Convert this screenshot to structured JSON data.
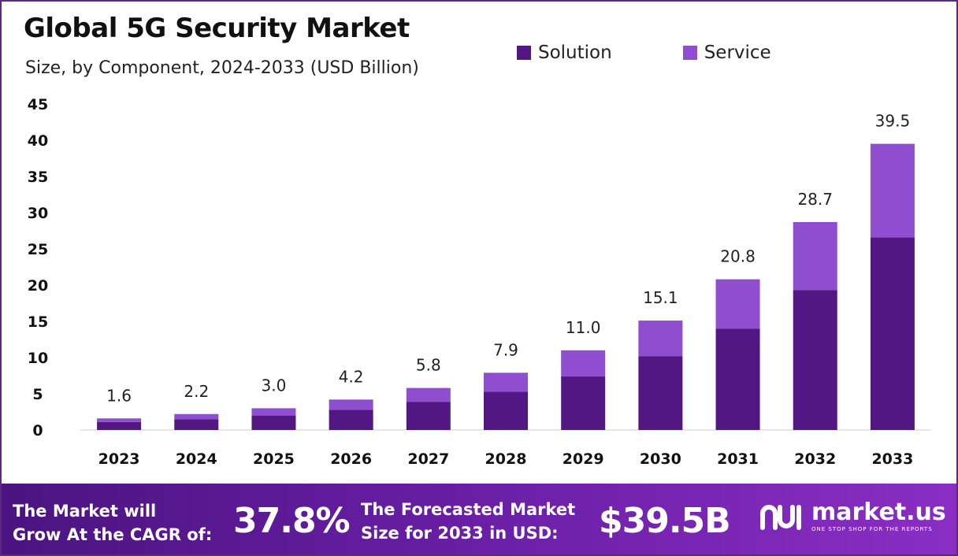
{
  "title": "Global 5G Security Market",
  "subtitle": "Size, by Component, 2024-2033 (USD Billion)",
  "colors": {
    "solution": "#521783",
    "service": "#8e4ecf",
    "axis": "#cccccc"
  },
  "legend": [
    {
      "label": "Solution",
      "color": "#521783"
    },
    {
      "label": "Service",
      "color": "#8e4ecf"
    }
  ],
  "chart_data": {
    "type": "bar",
    "stacked": true,
    "categories": [
      "2023",
      "2024",
      "2025",
      "2026",
      "2027",
      "2028",
      "2029",
      "2030",
      "2031",
      "2032",
      "2033"
    ],
    "series": [
      {
        "name": "Solution",
        "values": [
          1.1,
          1.5,
          2.0,
          2.8,
          3.9,
          5.3,
          7.4,
          10.2,
          14.0,
          19.3,
          26.6
        ]
      },
      {
        "name": "Service",
        "values": [
          0.5,
          0.7,
          1.0,
          1.4,
          1.9,
          2.6,
          3.6,
          4.9,
          6.8,
          9.4,
          12.9
        ]
      }
    ],
    "totals": [
      "1.6",
      "2.2",
      "3.0",
      "4.2",
      "5.8",
      "7.9",
      "11.0",
      "15.1",
      "20.8",
      "28.7",
      "39.5"
    ],
    "yticks": [
      0,
      5,
      10,
      15,
      20,
      25,
      30,
      35,
      40,
      45
    ],
    "ylim": [
      0,
      45
    ],
    "grid": false,
    "legend_position": "top-right"
  },
  "footer": {
    "cagr_text_line1": "The Market will",
    "cagr_text_line2": "Grow At the CAGR of:",
    "cagr_value": "37.8%",
    "forecast_text_line1": "The Forecasted Market",
    "forecast_text_line2": "Size for 2033 in USD:",
    "forecast_value": "$39.5B",
    "logo_name": "market.us",
    "logo_tagline": "ONE STOP SHOP FOR THE REPORTS"
  }
}
